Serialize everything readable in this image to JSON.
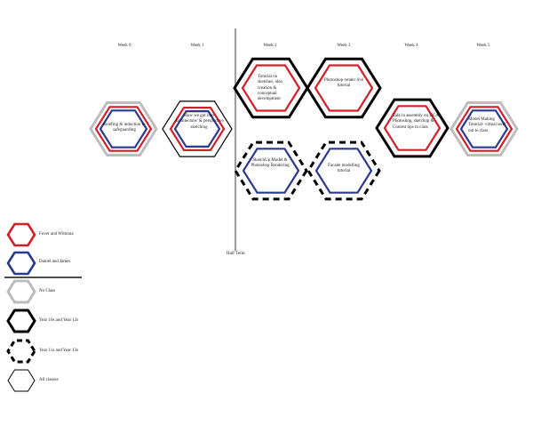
{
  "weeks": [
    "Week 0",
    "Week 1",
    "Week 2",
    "Week 3",
    "Week 4",
    "Week 5"
  ],
  "half_term": "Half Term",
  "sessions": {
    "w0": "Briefing & induction to safeguarding",
    "w1": "How we got into Architecture/ & perspective sketching",
    "w2_top": "Tutorial on sketches, idea creation & conceptual development",
    "w2_bottom": "SketchUp Model & Photoshop Rendering",
    "w3_top": "Photoshop render live tutorial",
    "w3_bottom": "Facade modelling tutorial",
    "w4": "Talk in assembly on UCAS, Photoshop, sketchup & Contest tips in class",
    "w5": "Model Making Tutorial- virtual send out to class"
  },
  "legend": [
    {
      "label": "Fover and Wiltonia",
      "style": "red-hex",
      "color": "#d0202a"
    },
    {
      "label": "Daniel and James",
      "style": "blue-hex",
      "color": "#2b3990"
    },
    {
      "label": "No Class",
      "style": "grey-hex",
      "color": "#bdbdbd"
    },
    {
      "label": "Year 10s and Year 12s",
      "style": "black-hex",
      "color": "#000000"
    },
    {
      "label": "Year 11s and Year 13s",
      "style": "dashed-hex",
      "color": "#000000"
    },
    {
      "label": "All classes",
      "style": "wavy-outline",
      "color": "#000000"
    }
  ]
}
